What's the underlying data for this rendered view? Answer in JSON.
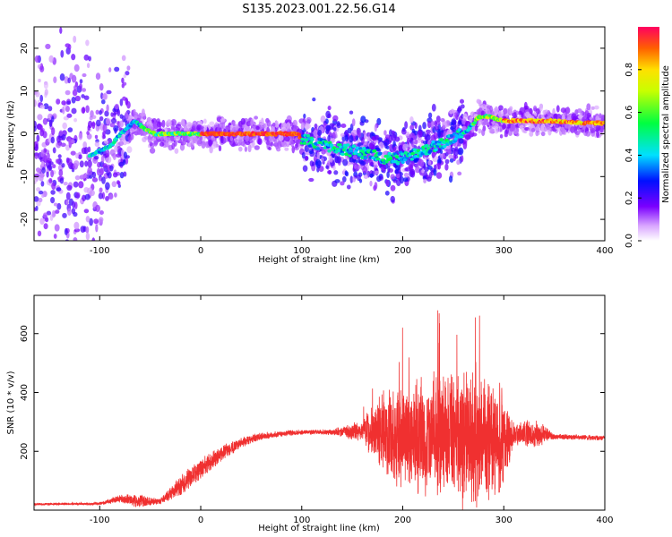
{
  "title": "S135.2023.001.22.56.G14",
  "colorbar": {
    "label": "Normalized spectral amplitude",
    "ticks": [
      "0.0",
      "0.2",
      "0.4",
      "0.6",
      "0.8"
    ],
    "tick_values": [
      0.0,
      0.2,
      0.4,
      0.6,
      0.8
    ],
    "range": [
      0,
      1
    ]
  },
  "chart_data": [
    {
      "type": "heatmap",
      "title": "",
      "xlabel": "Height of straight line (km)",
      "ylabel": "Frequency (Hz)",
      "xlim": [
        -165,
        400
      ],
      "ylim": [
        -25,
        25
      ],
      "xticks": [
        -100,
        0,
        100,
        200,
        300,
        400
      ],
      "yticks": [
        -20,
        -10,
        0,
        10,
        20
      ],
      "ridge": {
        "x": [
          -110,
          -90,
          -75,
          -65,
          -55,
          -45,
          -35,
          -25,
          -10,
          0,
          50,
          95,
          100,
          110,
          130,
          150,
          170,
          190,
          210,
          230,
          250,
          265,
          275,
          285,
          300,
          320,
          350,
          380,
          400
        ],
        "freq": [
          -5,
          -3,
          1,
          3,
          1,
          0,
          0,
          0,
          0,
          0,
          0,
          0,
          -1,
          -2,
          -3,
          -4,
          -5,
          -6,
          -5,
          -3,
          -1,
          1,
          4,
          4,
          3,
          3,
          3,
          2.5,
          2.5
        ]
      }
    },
    {
      "type": "line",
      "title": "",
      "xlabel": "Height of straight line (km)",
      "ylabel": "SNR (10 * v/v)",
      "xlim": [
        -165,
        400
      ],
      "ylim": [
        0,
        730
      ],
      "xticks": [
        -100,
        0,
        100,
        200,
        300,
        400
      ],
      "yticks": [
        200,
        400,
        600
      ],
      "color": "#f03030",
      "envelope": {
        "x": [
          -165,
          -100,
          -80,
          -60,
          -40,
          -20,
          0,
          20,
          40,
          60,
          80,
          100,
          130,
          160,
          180,
          200,
          240,
          260,
          280,
          300,
          310,
          330,
          350,
          400
        ],
        "mean": [
          20,
          22,
          40,
          30,
          30,
          80,
          140,
          190,
          230,
          250,
          260,
          265,
          265,
          270,
          260,
          250,
          250,
          250,
          250,
          240,
          260,
          260,
          250,
          245
        ],
        "spread": [
          5,
          5,
          15,
          25,
          10,
          40,
          40,
          30,
          20,
          15,
          12,
          10,
          10,
          40,
          160,
          200,
          240,
          260,
          250,
          180,
          40,
          60,
          10,
          10
        ]
      }
    }
  ]
}
